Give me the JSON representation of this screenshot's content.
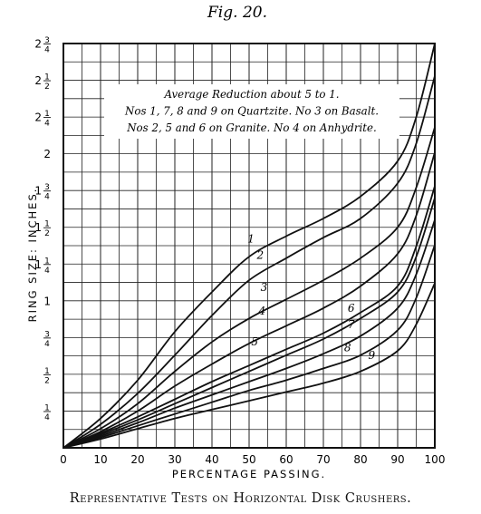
{
  "figure_label": "Fig. 20.",
  "caption": "Representative Tests on Horizontal Disk Crushers.",
  "chart_data": {
    "type": "line",
    "title": "",
    "xlabel": "PERCENTAGE PASSING.",
    "ylabel": "RING SIZE: INCHES.",
    "xlim": [
      0,
      100
    ],
    "ylim": [
      0,
      2.75
    ],
    "grid": true,
    "x_ticks": [
      0,
      10,
      20,
      30,
      40,
      50,
      60,
      70,
      80,
      90,
      100
    ],
    "x_tick_labels": [
      "0",
      "10",
      "20",
      "30",
      "40",
      "50",
      "60",
      "70",
      "80",
      "90",
      "100"
    ],
    "y_ticks": [
      0.25,
      0.5,
      0.75,
      1,
      1.25,
      1.5,
      1.75,
      2,
      2.25,
      2.5,
      2.75
    ],
    "y_tick_labels": [
      "1/4",
      "1/2",
      "3/4",
      "1",
      "1 1/4",
      "1 1/2",
      "1 3/4",
      "2",
      "2 1/4",
      "2 1/2",
      "2 3/4"
    ],
    "annotation": [
      "Average Reduction about 5 to 1.",
      "Nos 1, 7, 8 and 9 on Quartzite. No 3 on Basalt.",
      "Nos 2, 5 and 6 on Granite. No 4 on Anhydrite."
    ],
    "series": [
      {
        "name": "1",
        "label_at": [
          50.5,
          1.42
        ],
        "points": [
          [
            0,
            0
          ],
          [
            10,
            0.2
          ],
          [
            20,
            0.46
          ],
          [
            30,
            0.79
          ],
          [
            40,
            1.06
          ],
          [
            50,
            1.3
          ],
          [
            60,
            1.44
          ],
          [
            70,
            1.56
          ],
          [
            80,
            1.71
          ],
          [
            90,
            1.95
          ],
          [
            95,
            2.25
          ],
          [
            100,
            2.75
          ]
        ]
      },
      {
        "name": "2",
        "label_at": [
          53,
          1.31
        ],
        "points": [
          [
            0,
            0
          ],
          [
            10,
            0.16
          ],
          [
            20,
            0.37
          ],
          [
            30,
            0.63
          ],
          [
            40,
            0.9
          ],
          [
            50,
            1.14
          ],
          [
            60,
            1.29
          ],
          [
            70,
            1.43
          ],
          [
            80,
            1.56
          ],
          [
            90,
            1.8
          ],
          [
            95,
            2.07
          ],
          [
            100,
            2.53
          ]
        ]
      },
      {
        "name": "3",
        "label_at": [
          54,
          1.09
        ],
        "points": [
          [
            0,
            0
          ],
          [
            10,
            0.13
          ],
          [
            20,
            0.3
          ],
          [
            30,
            0.52
          ],
          [
            40,
            0.72
          ],
          [
            50,
            0.88
          ],
          [
            60,
            1.01
          ],
          [
            70,
            1.14
          ],
          [
            80,
            1.29
          ],
          [
            90,
            1.5
          ],
          [
            95,
            1.77
          ],
          [
            100,
            2.18
          ]
        ]
      },
      {
        "name": "4",
        "label_at": [
          53.5,
          0.93
        ],
        "points": [
          [
            0,
            0
          ],
          [
            10,
            0.11
          ],
          [
            20,
            0.25
          ],
          [
            30,
            0.42
          ],
          [
            40,
            0.57
          ],
          [
            50,
            0.71
          ],
          [
            60,
            0.83
          ],
          [
            70,
            0.95
          ],
          [
            80,
            1.1
          ],
          [
            90,
            1.32
          ],
          [
            95,
            1.58
          ],
          [
            100,
            2.01
          ]
        ]
      },
      {
        "name": "5",
        "label_at": [
          51.5,
          0.72
        ],
        "points": [
          [
            0,
            0
          ],
          [
            10,
            0.1
          ],
          [
            20,
            0.21
          ],
          [
            30,
            0.33
          ],
          [
            40,
            0.45
          ],
          [
            50,
            0.56
          ],
          [
            60,
            0.67
          ],
          [
            70,
            0.78
          ],
          [
            80,
            0.92
          ],
          [
            90,
            1.1
          ],
          [
            95,
            1.37
          ],
          [
            100,
            1.78
          ]
        ]
      },
      {
        "name": "6",
        "label_at": [
          77.5,
          0.95
        ],
        "points": [
          [
            0,
            0
          ],
          [
            10,
            0.09
          ],
          [
            20,
            0.19
          ],
          [
            30,
            0.3
          ],
          [
            40,
            0.41
          ],
          [
            50,
            0.52
          ],
          [
            60,
            0.63
          ],
          [
            70,
            0.74
          ],
          [
            80,
            0.88
          ],
          [
            90,
            1.06
          ],
          [
            95,
            1.3
          ],
          [
            100,
            1.7
          ]
        ]
      },
      {
        "name": "7",
        "label_at": [
          77.5,
          0.84
        ],
        "points": [
          [
            0,
            0
          ],
          [
            10,
            0.08
          ],
          [
            20,
            0.17
          ],
          [
            30,
            0.27
          ],
          [
            40,
            0.36
          ],
          [
            50,
            0.45
          ],
          [
            60,
            0.54
          ],
          [
            70,
            0.64
          ],
          [
            80,
            0.76
          ],
          [
            90,
            0.95
          ],
          [
            95,
            1.18
          ],
          [
            100,
            1.55
          ]
        ]
      },
      {
        "name": "8",
        "label_at": [
          76.5,
          0.68
        ],
        "points": [
          [
            0,
            0
          ],
          [
            10,
            0.07
          ],
          [
            20,
            0.15
          ],
          [
            30,
            0.23
          ],
          [
            40,
            0.31
          ],
          [
            50,
            0.39
          ],
          [
            60,
            0.46
          ],
          [
            70,
            0.54
          ],
          [
            80,
            0.63
          ],
          [
            90,
            0.8
          ],
          [
            95,
            1.02
          ],
          [
            100,
            1.38
          ]
        ]
      },
      {
        "name": "9",
        "label_at": [
          83,
          0.63
        ],
        "points": [
          [
            0,
            0
          ],
          [
            10,
            0.06
          ],
          [
            20,
            0.13
          ],
          [
            30,
            0.2
          ],
          [
            40,
            0.26
          ],
          [
            50,
            0.32
          ],
          [
            60,
            0.38
          ],
          [
            70,
            0.44
          ],
          [
            80,
            0.52
          ],
          [
            90,
            0.66
          ],
          [
            95,
            0.84
          ],
          [
            100,
            1.12
          ]
        ]
      }
    ]
  }
}
